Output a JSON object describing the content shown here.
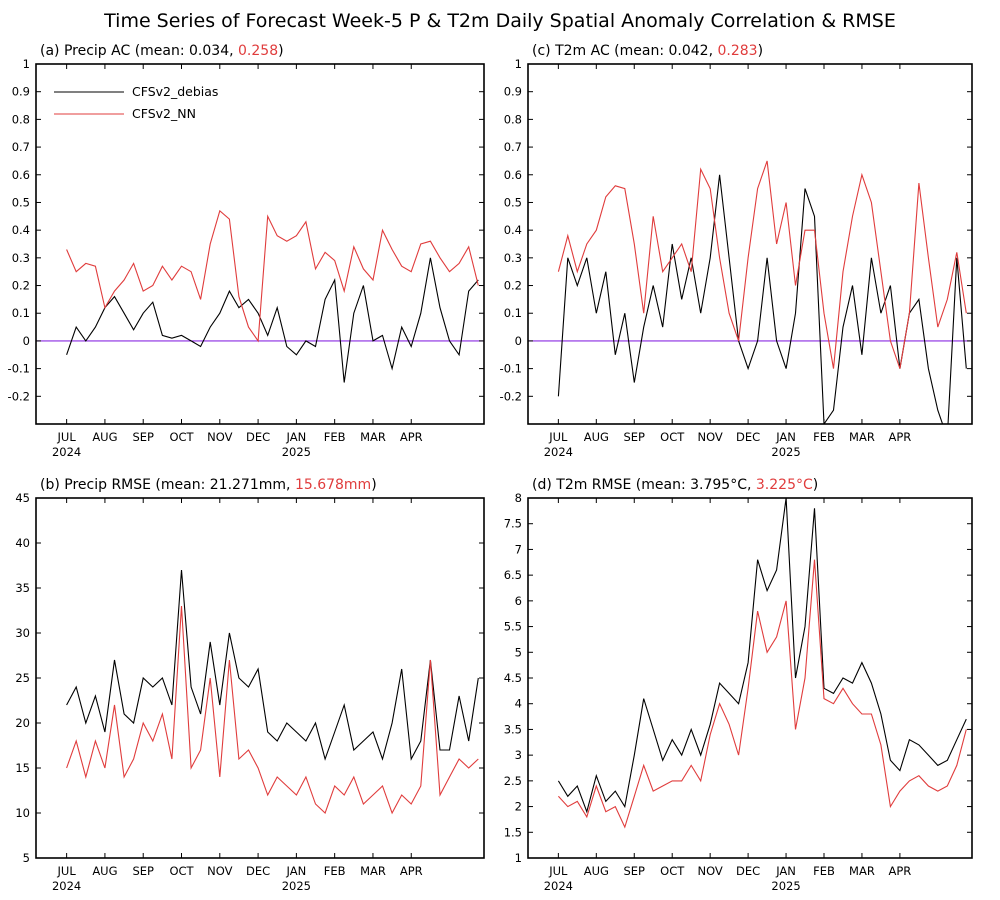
{
  "title": "Time Series of Forecast Week-5 P & T2m Daily Spatial Anomaly Correlation & RMSE",
  "colors": {
    "debias": "#000000",
    "nn": "#e03c3c",
    "zero_line": "#8a2be2"
  },
  "legend": {
    "debias": "CFSv2_debias",
    "nn": "CFSv2_NN"
  },
  "x_axis": {
    "months": [
      "JUL",
      "AUG",
      "SEP",
      "OCT",
      "NOV",
      "DEC",
      "JAN",
      "FEB",
      "MAR",
      "APR"
    ],
    "year_labels": [
      {
        "month": "JUL",
        "text": "2024"
      },
      {
        "month": "JAN",
        "text": "2025"
      }
    ]
  },
  "chart_data": [
    {
      "id": "a",
      "type": "line",
      "title_prefix": "(a) Precip AC (mean: 0.034, ",
      "title_highlight": "0.258",
      "title_suffix": ")",
      "ylim": [
        -0.3,
        1.0
      ],
      "yticks": [
        -0.2,
        -0.1,
        0,
        0.1,
        0.2,
        0.3,
        0.4,
        0.5,
        0.6,
        0.7,
        0.8,
        0.9,
        1
      ],
      "ytick_labels": [
        "-0.2",
        "-0.1",
        "0",
        "0.1",
        "0.2",
        "0.3",
        "0.4",
        "0.5",
        "0.6",
        "0.7",
        "0.8",
        "0.9",
        "1"
      ],
      "zero_line": true,
      "legend_position": "top-left",
      "x": [
        0,
        0.25,
        0.5,
        0.75,
        1,
        1.25,
        1.5,
        1.75,
        2,
        2.25,
        2.5,
        2.75,
        3,
        3.25,
        3.5,
        3.75,
        4,
        4.25,
        4.5,
        4.75,
        5,
        5.25,
        5.5,
        5.75,
        6,
        6.25,
        6.5,
        6.75,
        7,
        7.25,
        7.5,
        7.75,
        8,
        8.25,
        8.5,
        8.75,
        9,
        9.25,
        9.5,
        9.75,
        10,
        10.25,
        10.5,
        10.75
      ],
      "series": [
        {
          "name": "CFSv2_debias",
          "color": "#000000",
          "values": [
            -0.05,
            0.05,
            0.0,
            0.05,
            0.12,
            0.16,
            0.1,
            0.04,
            0.1,
            0.14,
            0.02,
            0.01,
            0.02,
            0.0,
            -0.02,
            0.05,
            0.1,
            0.18,
            0.12,
            0.15,
            0.1,
            0.02,
            0.12,
            -0.02,
            -0.05,
            0.0,
            -0.02,
            0.15,
            0.22,
            -0.15,
            0.1,
            0.2,
            0.0,
            0.02,
            -0.1,
            0.05,
            -0.02,
            0.1,
            0.3,
            0.12,
            0.0,
            -0.05,
            0.18,
            0.22
          ]
        },
        {
          "name": "CFSv2_NN",
          "color": "#e03c3c",
          "values": [
            0.33,
            0.25,
            0.28,
            0.27,
            0.12,
            0.18,
            0.22,
            0.28,
            0.18,
            0.2,
            0.27,
            0.22,
            0.27,
            0.25,
            0.15,
            0.35,
            0.47,
            0.44,
            0.16,
            0.05,
            0.0,
            0.45,
            0.38,
            0.36,
            0.38,
            0.43,
            0.26,
            0.32,
            0.29,
            0.18,
            0.34,
            0.26,
            0.22,
            0.4,
            0.33,
            0.27,
            0.25,
            0.35,
            0.36,
            0.3,
            0.25,
            0.28,
            0.34,
            0.2
          ]
        }
      ]
    },
    {
      "id": "c",
      "type": "line",
      "title_prefix": "(c) T2m AC (mean: 0.042, ",
      "title_highlight": "0.283",
      "title_suffix": ")",
      "ylim": [
        -0.3,
        1.0
      ],
      "yticks": [
        -0.2,
        -0.1,
        0,
        0.1,
        0.2,
        0.3,
        0.4,
        0.5,
        0.6,
        0.7,
        0.8,
        0.9,
        1
      ],
      "ytick_labels": [
        "-0.2",
        "-0.1",
        "0",
        "0.1",
        "0.2",
        "0.3",
        "0.4",
        "0.5",
        "0.6",
        "0.7",
        "0.8",
        "0.9",
        "1"
      ],
      "zero_line": true,
      "x": [
        0,
        0.25,
        0.5,
        0.75,
        1,
        1.25,
        1.5,
        1.75,
        2,
        2.25,
        2.5,
        2.75,
        3,
        3.25,
        3.5,
        3.75,
        4,
        4.25,
        4.5,
        4.75,
        5,
        5.25,
        5.5,
        5.75,
        6,
        6.25,
        6.5,
        6.75,
        7,
        7.25,
        7.5,
        7.75,
        8,
        8.25,
        8.5,
        8.75,
        9,
        9.25,
        9.5,
        9.75,
        10,
        10.25,
        10.5,
        10.75
      ],
      "series": [
        {
          "name": "CFSv2_debias",
          "color": "#000000",
          "values": [
            -0.2,
            0.3,
            0.2,
            0.3,
            0.1,
            0.25,
            -0.05,
            0.1,
            -0.15,
            0.05,
            0.2,
            0.05,
            0.35,
            0.15,
            0.3,
            0.1,
            0.3,
            0.6,
            0.3,
            0.0,
            -0.1,
            0.0,
            0.3,
            0.0,
            -0.1,
            0.1,
            0.55,
            0.45,
            -0.3,
            -0.25,
            0.05,
            0.2,
            -0.05,
            0.3,
            0.1,
            0.2,
            -0.1,
            0.1,
            0.15,
            -0.1,
            -0.25,
            -0.35,
            0.3,
            -0.1
          ]
        },
        {
          "name": "CFSv2_NN",
          "color": "#e03c3c",
          "values": [
            0.25,
            0.38,
            0.25,
            0.35,
            0.4,
            0.52,
            0.56,
            0.55,
            0.35,
            0.1,
            0.45,
            0.25,
            0.3,
            0.35,
            0.25,
            0.62,
            0.55,
            0.3,
            0.1,
            0.0,
            0.3,
            0.55,
            0.65,
            0.35,
            0.5,
            0.2,
            0.4,
            0.4,
            0.1,
            -0.1,
            0.25,
            0.45,
            0.6,
            0.5,
            0.25,
            0.0,
            -0.1,
            0.1,
            0.57,
            0.3,
            0.05,
            0.15,
            0.32,
            0.1
          ]
        }
      ]
    },
    {
      "id": "b",
      "type": "line",
      "title_prefix": "(b) Precip RMSE (mean: 21.271mm, ",
      "title_highlight": "15.678mm",
      "title_suffix": ")",
      "ylim": [
        5,
        45
      ],
      "yticks": [
        5,
        10,
        15,
        20,
        25,
        30,
        35,
        40,
        45
      ],
      "ytick_labels": [
        "5",
        "10",
        "15",
        "20",
        "25",
        "30",
        "35",
        "40",
        "45"
      ],
      "zero_line": false,
      "x": [
        0,
        0.25,
        0.5,
        0.75,
        1,
        1.25,
        1.5,
        1.75,
        2,
        2.25,
        2.5,
        2.75,
        3,
        3.25,
        3.5,
        3.75,
        4,
        4.25,
        4.5,
        4.75,
        5,
        5.25,
        5.5,
        5.75,
        6,
        6.25,
        6.5,
        6.75,
        7,
        7.25,
        7.5,
        7.75,
        8,
        8.25,
        8.5,
        8.75,
        9,
        9.25,
        9.5,
        9.75,
        10,
        10.25,
        10.5,
        10.75
      ],
      "series": [
        {
          "name": "CFSv2_debias",
          "color": "#000000",
          "values": [
            22,
            24,
            20,
            23,
            19,
            27,
            21,
            20,
            25,
            24,
            25,
            22,
            37,
            24,
            21,
            29,
            22,
            30,
            25,
            24,
            26,
            19,
            18,
            20,
            19,
            18,
            20,
            16,
            19,
            22,
            17,
            18,
            19,
            16,
            20,
            26,
            16,
            18,
            27,
            17,
            17,
            23,
            18,
            25
          ]
        },
        {
          "name": "CFSv2_NN",
          "color": "#e03c3c",
          "values": [
            15,
            18,
            14,
            18,
            15,
            22,
            14,
            16,
            20,
            18,
            21,
            16,
            33,
            15,
            17,
            25,
            14,
            27,
            16,
            17,
            15,
            12,
            14,
            13,
            12,
            14,
            11,
            10,
            13,
            12,
            14,
            11,
            12,
            13,
            10,
            12,
            11,
            13,
            27,
            12,
            14,
            16,
            15,
            16
          ]
        }
      ]
    },
    {
      "id": "d",
      "type": "line",
      "title_prefix": "(d) T2m RMSE (mean: 3.795°C, ",
      "title_highlight": "3.225°C",
      "title_suffix": ")",
      "ylim": [
        1,
        8
      ],
      "yticks": [
        1,
        1.5,
        2,
        2.5,
        3,
        3.5,
        4,
        4.5,
        5,
        5.5,
        6,
        6.5,
        7,
        7.5,
        8
      ],
      "ytick_labels": [
        "1",
        "1.5",
        "2",
        "2.5",
        "3",
        "3.5",
        "4",
        "4.5",
        "5",
        "5.5",
        "6",
        "6.5",
        "7",
        "7.5",
        "8"
      ],
      "zero_line": false,
      "x": [
        0,
        0.25,
        0.5,
        0.75,
        1,
        1.25,
        1.5,
        1.75,
        2,
        2.25,
        2.5,
        2.75,
        3,
        3.25,
        3.5,
        3.75,
        4,
        4.25,
        4.5,
        4.75,
        5,
        5.25,
        5.5,
        5.75,
        6,
        6.25,
        6.5,
        6.75,
        7,
        7.25,
        7.5,
        7.75,
        8,
        8.25,
        8.5,
        8.75,
        9,
        9.25,
        9.5,
        9.75,
        10,
        10.25,
        10.5,
        10.75
      ],
      "series": [
        {
          "name": "CFSv2_debias",
          "color": "#000000",
          "values": [
            2.5,
            2.2,
            2.4,
            1.9,
            2.6,
            2.1,
            2.3,
            2.0,
            3.0,
            4.1,
            3.5,
            2.9,
            3.3,
            3.0,
            3.5,
            3.0,
            3.6,
            4.4,
            4.2,
            4.0,
            4.8,
            6.8,
            6.2,
            6.6,
            8.0,
            4.5,
            5.5,
            7.8,
            4.3,
            4.2,
            4.5,
            4.4,
            4.8,
            4.4,
            3.8,
            2.9,
            2.7,
            3.3,
            3.2,
            3.0,
            2.8,
            2.9,
            3.3,
            3.7
          ]
        },
        {
          "name": "CFSv2_NN",
          "color": "#e03c3c",
          "values": [
            2.2,
            2.0,
            2.1,
            1.8,
            2.4,
            1.9,
            2.0,
            1.6,
            2.2,
            2.8,
            2.3,
            2.4,
            2.5,
            2.5,
            2.8,
            2.5,
            3.4,
            4.0,
            3.6,
            3.0,
            4.3,
            5.8,
            5.0,
            5.3,
            6.0,
            3.5,
            4.5,
            6.8,
            4.1,
            4.0,
            4.3,
            4.0,
            3.8,
            3.8,
            3.2,
            2.0,
            2.3,
            2.5,
            2.6,
            2.4,
            2.3,
            2.4,
            2.8,
            3.5
          ]
        }
      ]
    }
  ]
}
